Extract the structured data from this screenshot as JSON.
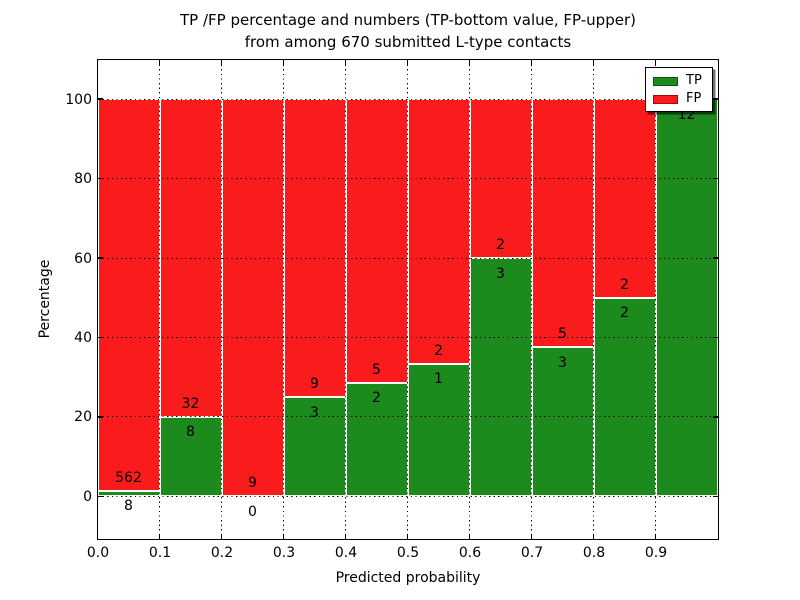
{
  "figure": {
    "title_line1": "TP /FP percentage and numbers (TP-bottom value, FP-upper)",
    "title_line2": "from among 670 submitted L-type contacts"
  },
  "chart_data": {
    "type": "bar",
    "subtype": "stacked-percentage-histogram",
    "title": "TP /FP percentage and numbers (TP-bottom value, FP-upper)\nfrom among 670 submitted L-type contacts",
    "xlabel": "Predicted probability",
    "ylabel": "Percentage",
    "xlim": [
      0.0,
      1.0
    ],
    "ylim": [
      -10.6,
      110
    ],
    "bin_width": 0.1,
    "grid": true,
    "legend_position": "upper right",
    "total_contacts": 670,
    "categories": [
      "0.0-0.1",
      "0.1-0.2",
      "0.2-0.3",
      "0.3-0.4",
      "0.4-0.5",
      "0.5-0.6",
      "0.6-0.7",
      "0.7-0.8",
      "0.8-0.9",
      "0.9-1.0"
    ],
    "xticks": [
      "0.0",
      "0.1",
      "0.2",
      "0.3",
      "0.4",
      "0.5",
      "0.6",
      "0.7",
      "0.8",
      "0.9"
    ],
    "yticks": [
      0,
      20,
      40,
      60,
      80,
      100
    ],
    "series": [
      {
        "name": "TP",
        "color": "#1c8a1c",
        "values": [
          8,
          8,
          0,
          3,
          2,
          1,
          3,
          3,
          2,
          12
        ]
      },
      {
        "name": "FP",
        "color": "#fa1c1c",
        "values": [
          562,
          32,
          9,
          9,
          5,
          2,
          2,
          5,
          2,
          0
        ]
      }
    ],
    "tp_percent": [
      1.4,
      20.0,
      0.0,
      25.0,
      28.6,
      33.3,
      60.0,
      37.5,
      50.0,
      100.0
    ]
  },
  "legend": {
    "items": [
      {
        "label": "TP",
        "color": "#1c8a1c"
      },
      {
        "label": "FP",
        "color": "#fa1c1c"
      }
    ]
  }
}
